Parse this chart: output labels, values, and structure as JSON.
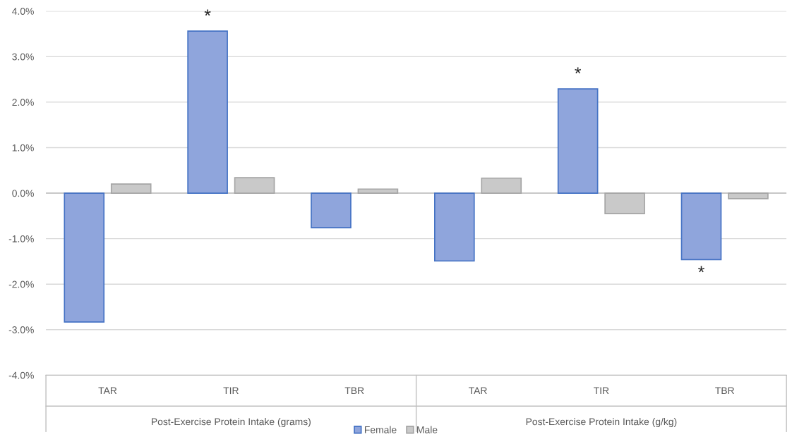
{
  "chart_data": {
    "type": "bar",
    "categories": [
      "TAR",
      "TIR",
      "TBR",
      "TAR",
      "TIR",
      "TBR"
    ],
    "series": [
      {
        "name": "Female",
        "color": "#8fa5dc",
        "values": [
          -2.83,
          3.56,
          -0.76,
          -1.49,
          2.29,
          -1.46
        ],
        "value_labels": [
          null,
          "*",
          null,
          null,
          "*",
          "*"
        ]
      },
      {
        "name": "Male",
        "color": "#c9c9c9",
        "values": [
          0.2,
          0.34,
          0.09,
          0.33,
          -0.45,
          -0.12
        ]
      }
    ],
    "ylim": [
      -4,
      4
    ],
    "yticks": [
      {
        "value": -4,
        "label": "-4.0%"
      },
      {
        "value": -3,
        "label": "-3.0%"
      },
      {
        "value": -2,
        "label": "-2.0%"
      },
      {
        "value": -1,
        "label": "-1.0%"
      },
      {
        "value": 0,
        "label": "0.0%"
      },
      {
        "value": 1,
        "label": "1.0%"
      },
      {
        "value": 2,
        "label": "2.0%"
      },
      {
        "value": 3,
        "label": "3.0%"
      },
      {
        "value": 4,
        "label": "4.0%"
      }
    ],
    "grid": "y",
    "legend": "bottom",
    "annotations": [
      "Post-Exercise Protein Intake (grams)",
      "Post-Exercise Protein Intake (g/kg)"
    ]
  }
}
